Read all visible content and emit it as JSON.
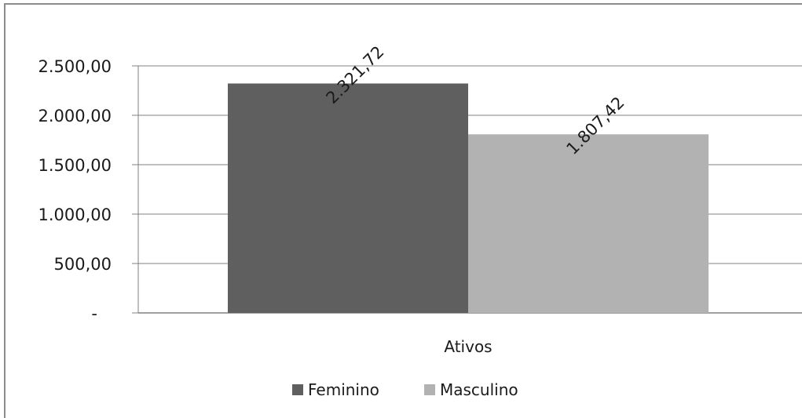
{
  "chart_data": {
    "type": "bar",
    "categories": [
      "Ativos"
    ],
    "series": [
      {
        "name": "Feminino",
        "values": [
          2321.72
        ],
        "value_label": "2.321,72",
        "color": "#5f5f5f"
      },
      {
        "name": "Masculino",
        "values": [
          1807.42
        ],
        "value_label": "1.807,42",
        "color": "#b2b2b2"
      }
    ],
    "ylim": [
      0,
      2500
    ],
    "yticks": [
      {
        "value": 0,
        "label": "-"
      },
      {
        "value": 500,
        "label": "500,00"
      },
      {
        "value": 1000,
        "label": "1.000,00"
      },
      {
        "value": 1500,
        "label": "1.500,00"
      },
      {
        "value": 2000,
        "label": "2.000,00"
      },
      {
        "value": 2500,
        "label": "2.500,00"
      }
    ],
    "grid": true,
    "legend_position": "bottom",
    "gridline_color": "#808080",
    "frame_color": "#808080"
  }
}
